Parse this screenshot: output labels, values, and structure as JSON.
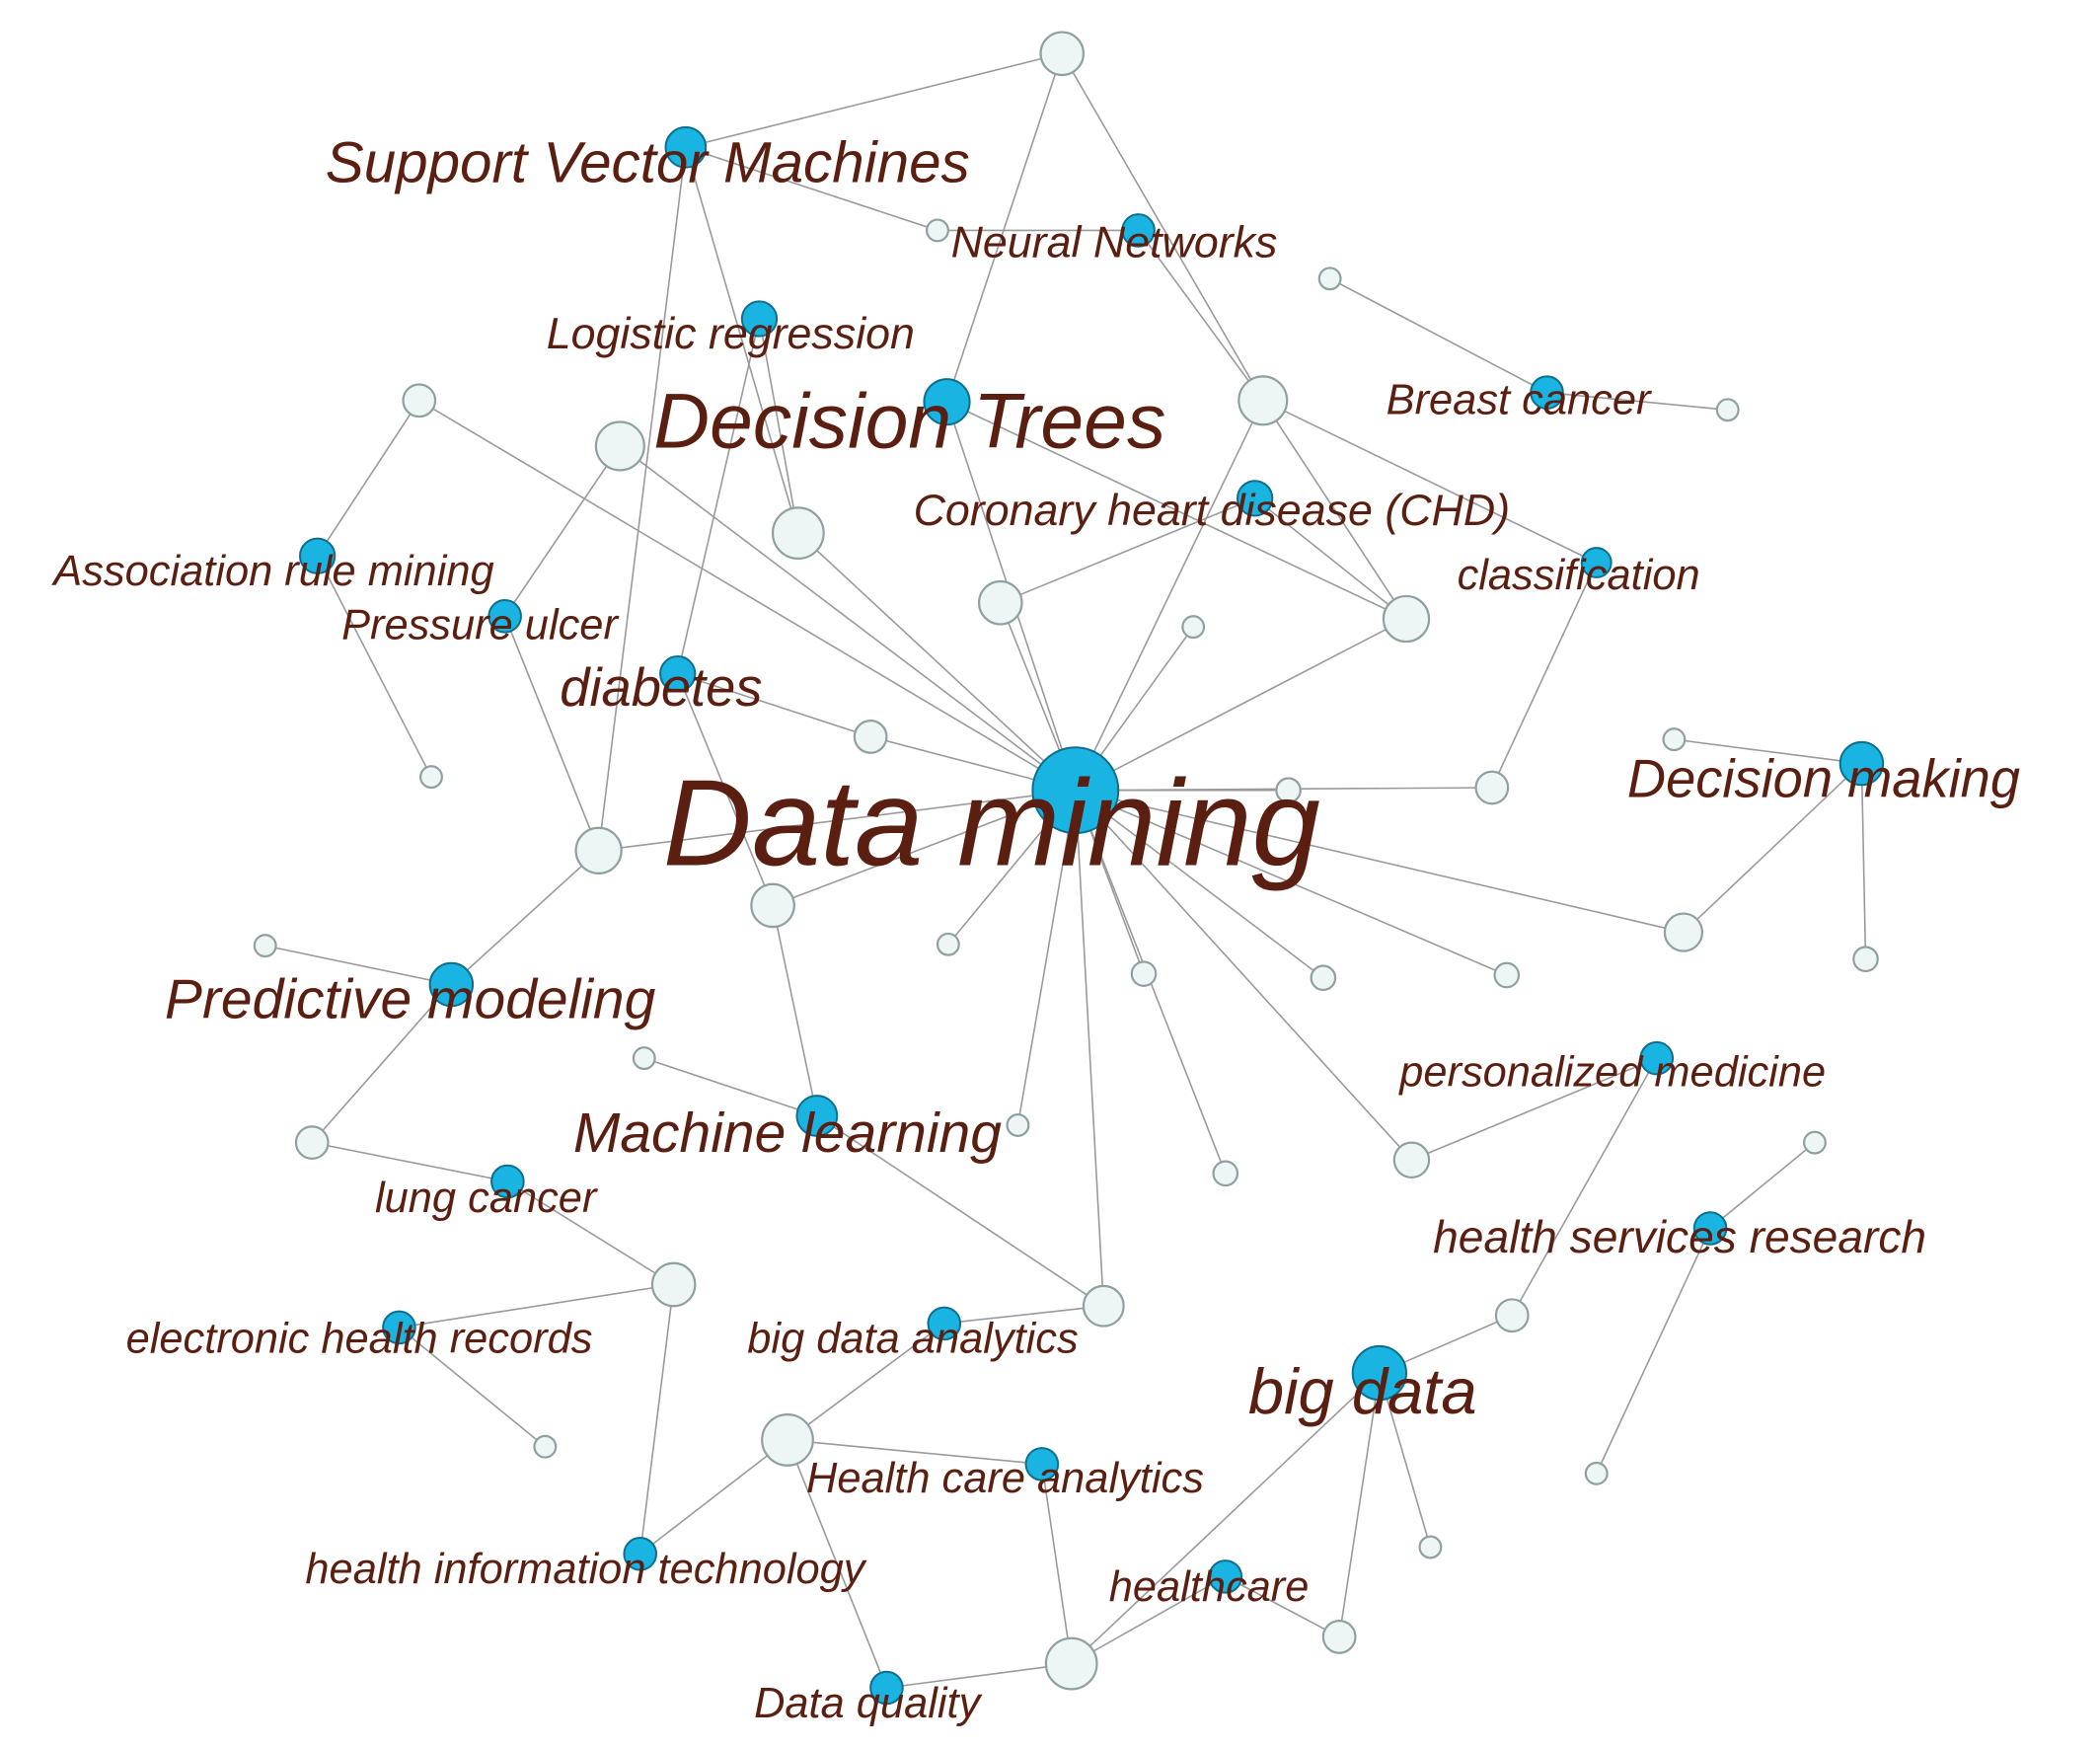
{
  "colors": {
    "background": "#000000",
    "panel": "#ffffff",
    "label": "#5a1f10",
    "keyword_node": "#1ab4e2",
    "secondary_node": "#eef5f5",
    "edge": "#9a9a9a"
  },
  "icons": {
    "keyword_node": "filled-blue-circle",
    "secondary_node": "hollow-grey-circle"
  },
  "keywords": [
    {
      "id": "data-mining",
      "label": "Data mining"
    },
    {
      "id": "support-vector-machines",
      "label": "Support Vector Machines"
    },
    {
      "id": "neural-networks",
      "label": "Neural Networks"
    },
    {
      "id": "logistic-regression",
      "label": "Logistic regression"
    },
    {
      "id": "decision-trees",
      "label": "Decision Trees"
    },
    {
      "id": "breast-cancer",
      "label": "Breast cancer"
    },
    {
      "id": "coronary-heart-disease",
      "label": "Coronary heart disease (CHD)"
    },
    {
      "id": "association-rule-mining",
      "label": "Association rule mining"
    },
    {
      "id": "classification",
      "label": "classification"
    },
    {
      "id": "pressure-ulcer",
      "label": "Pressure ulcer"
    },
    {
      "id": "diabetes",
      "label": "diabetes"
    },
    {
      "id": "decision-making",
      "label": "Decision making"
    },
    {
      "id": "predictive-modeling",
      "label": "Predictive modeling"
    },
    {
      "id": "personalized-medicine",
      "label": "personalized medicine"
    },
    {
      "id": "machine-learning",
      "label": "Machine learning"
    },
    {
      "id": "lung-cancer",
      "label": "lung cancer"
    },
    {
      "id": "health-services-research",
      "label": "health services research"
    },
    {
      "id": "electronic-health-records",
      "label": "electronic health records"
    },
    {
      "id": "big-data-analytics",
      "label": "big data analytics"
    },
    {
      "id": "big-data",
      "label": "big data"
    },
    {
      "id": "health-care-analytics",
      "label": "Health care analytics"
    },
    {
      "id": "health-information-technology",
      "label": "health information technology"
    },
    {
      "id": "healthcare",
      "label": "healthcare"
    },
    {
      "id": "data-quality",
      "label": "Data quality"
    }
  ]
}
